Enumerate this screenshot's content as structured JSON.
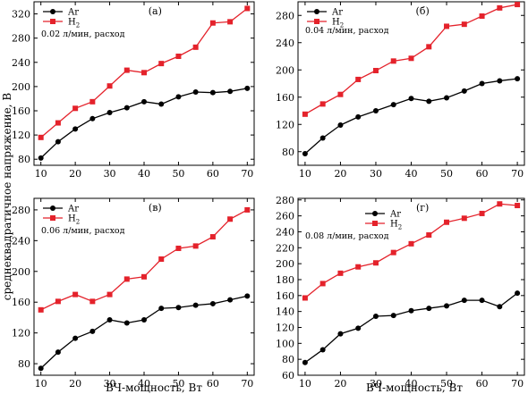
{
  "figure": {
    "ylabel": "среднеквадратичное напряжение, В",
    "xlabel_left": "ВЧ-мощность, Вт",
    "xlabel_right": "ВЧ-мощность, Вт"
  },
  "colors": {
    "ar": "#000000",
    "h2": "#e4222b"
  },
  "chart_data": [
    {
      "type": "line",
      "panel_label": "(а)",
      "annotation": "0.02 л/мин, расход",
      "x": [
        10,
        15,
        20,
        25,
        30,
        35,
        40,
        45,
        50,
        55,
        60,
        65,
        70
      ],
      "xticks": [
        10,
        20,
        30,
        40,
        50,
        60,
        70
      ],
      "xlim": [
        8,
        72
      ],
      "ylim": [
        70,
        340
      ],
      "yticks": [
        80,
        120,
        160,
        200,
        240,
        280,
        320
      ],
      "legend": "top-left",
      "series": [
        {
          "name": "Ar",
          "values": [
            82,
            109,
            130,
            147,
            157,
            165,
            175,
            171,
            183,
            191,
            190,
            192,
            197
          ]
        },
        {
          "name": "H",
          "sub": "2",
          "values": [
            116,
            140,
            164,
            175,
            201,
            227,
            223,
            238,
            250,
            265,
            305,
            307,
            329
          ]
        }
      ]
    },
    {
      "type": "line",
      "panel_label": "(б)",
      "annotation": "0.04 л/мин, расход",
      "x": [
        10,
        15,
        20,
        25,
        30,
        35,
        40,
        45,
        50,
        55,
        60,
        65,
        70
      ],
      "xticks": [
        10,
        20,
        30,
        40,
        50,
        60,
        70
      ],
      "xlim": [
        8,
        72
      ],
      "ylim": [
        60,
        300
      ],
      "yticks": [
        80,
        120,
        160,
        200,
        240,
        280
      ],
      "legend": "top-left",
      "series": [
        {
          "name": "Ar",
          "values": [
            77,
            100,
            119,
            131,
            140,
            149,
            158,
            154,
            159,
            169,
            180,
            184,
            187
          ]
        },
        {
          "name": "H",
          "sub": "2",
          "values": [
            135,
            150,
            164,
            186,
            199,
            213,
            217,
            234,
            264,
            267,
            279,
            291,
            296
          ]
        }
      ]
    },
    {
      "type": "line",
      "panel_label": "(в)",
      "annotation": "0.06 л/мин, расход",
      "x": [
        10,
        15,
        20,
        25,
        30,
        35,
        40,
        45,
        50,
        55,
        60,
        65,
        70
      ],
      "xticks": [
        10,
        20,
        30,
        40,
        50,
        60,
        70
      ],
      "xlim": [
        8,
        72
      ],
      "ylim": [
        65,
        295
      ],
      "yticks": [
        80,
        120,
        160,
        200,
        240,
        280
      ],
      "legend": "top-left",
      "series": [
        {
          "name": "Ar",
          "values": [
            74,
            95,
            113,
            122,
            137,
            133,
            137,
            152,
            153,
            156,
            158,
            163,
            168
          ]
        },
        {
          "name": "H",
          "sub": "2",
          "values": [
            150,
            161,
            170,
            161,
            170,
            190,
            193,
            216,
            230,
            233,
            245,
            268,
            280
          ]
        }
      ]
    },
    {
      "type": "line",
      "panel_label": "(г)",
      "annotation": "0.08 л/мин, расход",
      "x": [
        10,
        15,
        20,
        25,
        30,
        35,
        40,
        45,
        50,
        55,
        60,
        65,
        70
      ],
      "xticks": [
        10,
        20,
        30,
        40,
        50,
        60,
        70
      ],
      "xlim": [
        8,
        72
      ],
      "ylim": [
        60,
        282
      ],
      "yticks": [
        60,
        80,
        100,
        120,
        140,
        160,
        180,
        200,
        220,
        240,
        260,
        280
      ],
      "legend": "top-center",
      "series": [
        {
          "name": "Ar",
          "values": [
            76,
            92,
            112,
            119,
            134,
            135,
            141,
            144,
            147,
            154,
            154,
            146,
            163
          ]
        },
        {
          "name": "H",
          "sub": "2",
          "values": [
            157,
            175,
            188,
            196,
            201,
            214,
            225,
            236,
            252,
            257,
            263,
            275,
            273
          ]
        }
      ]
    }
  ]
}
